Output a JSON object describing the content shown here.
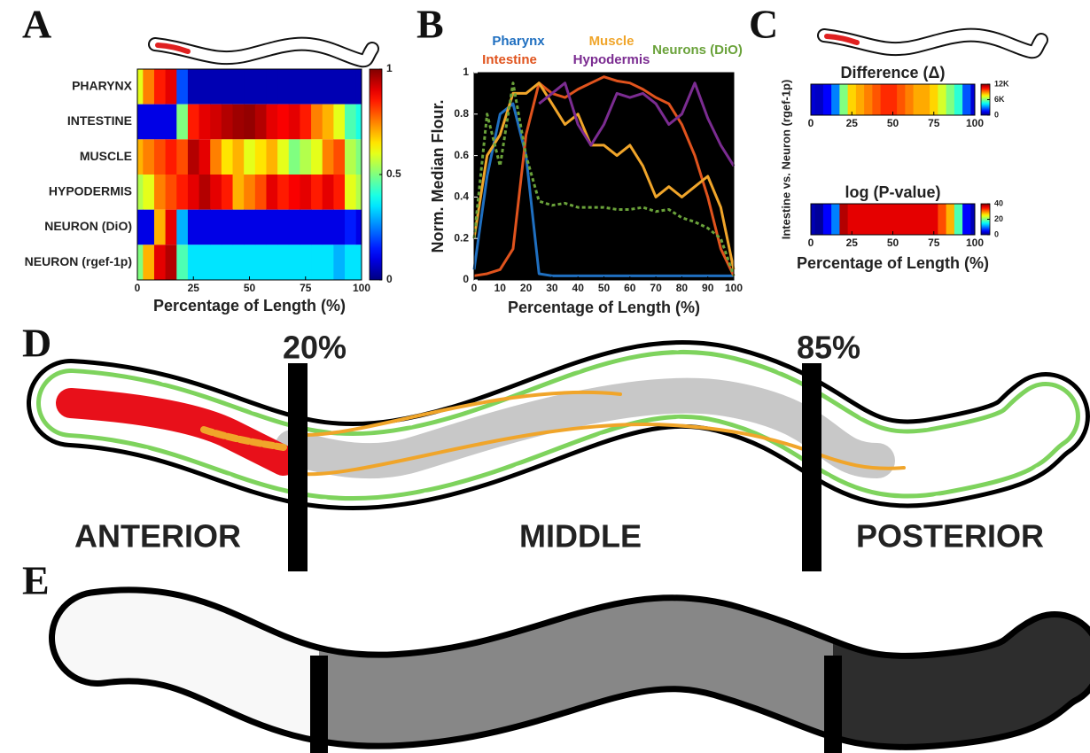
{
  "chart_data": [
    {
      "panel": "A",
      "type": "heatmap",
      "xlabel": "Percentage of Length (%)",
      "colormap": "jet",
      "x": [
        0,
        5,
        10,
        15,
        20,
        25,
        30,
        35,
        40,
        45,
        50,
        55,
        60,
        65,
        70,
        75,
        80,
        85,
        90,
        95,
        100
      ],
      "rows": [
        {
          "name": "PHARYNX",
          "values": [
            0.6,
            0.75,
            0.85,
            0.9,
            0.2,
            0.05,
            0.05,
            0.05,
            0.05,
            0.05,
            0.05,
            0.05,
            0.05,
            0.05,
            0.05,
            0.05,
            0.05,
            0.05,
            0.05,
            0.05,
            0.05
          ]
        },
        {
          "name": "INTESTINE",
          "values": [
            0.1,
            0.1,
            0.1,
            0.1,
            0.5,
            0.85,
            0.9,
            0.92,
            0.95,
            0.97,
            0.98,
            0.95,
            0.9,
            0.88,
            0.9,
            0.85,
            0.75,
            0.7,
            0.6,
            0.45,
            0.4
          ]
        },
        {
          "name": "MUSCLE",
          "values": [
            0.7,
            0.75,
            0.8,
            0.85,
            0.8,
            0.95,
            0.9,
            0.75,
            0.65,
            0.7,
            0.6,
            0.65,
            0.7,
            0.6,
            0.5,
            0.55,
            0.6,
            0.75,
            0.8,
            0.55,
            0.5
          ]
        },
        {
          "name": "HYPODERMIS",
          "values": [
            0.55,
            0.6,
            0.75,
            0.8,
            0.85,
            0.9,
            0.95,
            0.9,
            0.85,
            0.7,
            0.75,
            0.8,
            0.9,
            0.85,
            0.88,
            0.9,
            0.85,
            0.9,
            0.85,
            0.6,
            0.55
          ]
        },
        {
          "name": "NEURON (DiO)",
          "values": [
            0.1,
            0.1,
            0.7,
            0.9,
            0.3,
            0.1,
            0.1,
            0.1,
            0.1,
            0.1,
            0.1,
            0.1,
            0.1,
            0.1,
            0.1,
            0.1,
            0.1,
            0.1,
            0.1,
            0.15,
            0.1
          ]
        },
        {
          "name": "NEURON (rgef-1p)",
          "values": [
            0.5,
            0.7,
            0.9,
            0.95,
            0.45,
            0.35,
            0.35,
            0.35,
            0.35,
            0.35,
            0.35,
            0.35,
            0.35,
            0.35,
            0.35,
            0.35,
            0.35,
            0.35,
            0.3,
            0.35,
            0.35
          ]
        }
      ],
      "xlim": [
        0,
        100
      ],
      "xticks": [
        0,
        25,
        50,
        75,
        100
      ],
      "zlim": [
        0,
        1
      ],
      "zticks": [
        0,
        0.5,
        1
      ]
    },
    {
      "panel": "B",
      "type": "line",
      "xlabel": "Percentage of Length (%)",
      "ylabel": "Norm. Median Flour.",
      "background": "#000000",
      "x": [
        0,
        5,
        10,
        15,
        20,
        25,
        30,
        35,
        40,
        45,
        50,
        55,
        60,
        65,
        70,
        75,
        80,
        85,
        90,
        95,
        100
      ],
      "series": [
        {
          "name": "Pharynx",
          "color": "#1f6fc0",
          "values": [
            0.05,
            0.5,
            0.8,
            0.85,
            0.6,
            0.03,
            0.02,
            0.02,
            0.02,
            0.02,
            0.02,
            0.02,
            0.02,
            0.02,
            0.02,
            0.02,
            0.02,
            0.02,
            0.02,
            0.02,
            0.02
          ]
        },
        {
          "name": "Intestine",
          "color": "#e0531d",
          "values": [
            0.02,
            0.03,
            0.05,
            0.15,
            0.7,
            0.95,
            0.9,
            0.88,
            0.92,
            0.95,
            0.98,
            0.96,
            0.95,
            0.92,
            0.88,
            0.85,
            0.75,
            0.6,
            0.4,
            0.15,
            0.02
          ]
        },
        {
          "name": "Muscle",
          "color": "#f0a52a",
          "values": [
            0.2,
            0.6,
            0.7,
            0.9,
            0.9,
            0.95,
            0.85,
            0.75,
            0.8,
            0.65,
            0.65,
            0.6,
            0.65,
            0.55,
            0.4,
            0.45,
            0.4,
            0.45,
            0.5,
            0.35,
            0.05
          ]
        },
        {
          "name": "Hypodermis",
          "color": "#7b2c91",
          "values": [
            null,
            null,
            null,
            null,
            null,
            0.85,
            0.9,
            0.95,
            0.75,
            0.65,
            0.75,
            0.9,
            0.88,
            0.9,
            0.85,
            0.75,
            0.8,
            0.95,
            0.78,
            0.65,
            0.55
          ]
        },
        {
          "name": "Neurons (DiO)",
          "color": "#6aa23a",
          "dashed": true,
          "values": [
            0.2,
            0.8,
            0.55,
            0.95,
            0.6,
            0.38,
            0.36,
            0.37,
            0.35,
            0.35,
            0.35,
            0.34,
            0.34,
            0.35,
            0.33,
            0.34,
            0.3,
            0.28,
            0.25,
            0.2,
            0.02
          ]
        }
      ],
      "xlim": [
        0,
        100
      ],
      "ylim": [
        0,
        1
      ],
      "xticks": [
        0,
        10,
        20,
        30,
        40,
        50,
        60,
        70,
        80,
        90,
        100
      ],
      "yticks": [
        0,
        0.2,
        0.4,
        0.6,
        0.8,
        1
      ]
    },
    {
      "panel": "C",
      "type": "heatmap",
      "xlabel": "Percentage of Length (%)",
      "ylabel": "Intestine vs. Neuron (rgef-1p)",
      "colormap": "jet",
      "x": [
        0,
        5,
        10,
        15,
        20,
        25,
        30,
        35,
        40,
        45,
        50,
        55,
        60,
        65,
        70,
        75,
        80,
        85,
        90,
        95,
        100
      ],
      "rows": [
        {
          "title": "Difference (Δ)",
          "values": [
            1000,
            800,
            1500,
            3000,
            6000,
            8000,
            8500,
            9000,
            9500,
            10000,
            10000,
            9500,
            9000,
            8500,
            8500,
            8000,
            7000,
            6000,
            5000,
            2500,
            1000
          ],
          "zlim": [
            0,
            12000
          ],
          "zticks": [
            0,
            {
              "value": 6000,
              "label": "6K"
            },
            {
              "value": 12000,
              "label": "12K"
            }
          ]
        },
        {
          "title": "log (P-value)",
          "values": [
            2,
            1,
            5,
            10,
            38,
            36,
            36,
            36,
            36,
            36,
            36,
            36,
            36,
            36,
            36,
            36,
            32,
            28,
            18,
            5,
            2
          ],
          "zlim": [
            0,
            40
          ],
          "zticks": [
            0,
            20,
            40
          ]
        }
      ],
      "xlim": [
        0,
        100
      ],
      "xticks": [
        0,
        25,
        50,
        75,
        100
      ]
    }
  ],
  "diagram": {
    "panel_d": "D",
    "panel_e": "E",
    "markers": [
      "20%",
      "85%"
    ],
    "regions": [
      "ANTERIOR",
      "MIDDLE",
      "POSTERIOR"
    ]
  }
}
